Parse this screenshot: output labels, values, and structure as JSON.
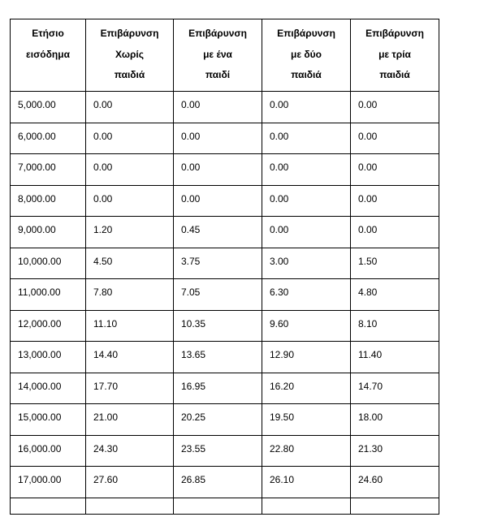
{
  "table": {
    "headers": [
      [
        "Ετήσιο",
        "εισόδημα"
      ],
      [
        "Επιβάρυνση",
        "Χωρίς",
        "παιδιά"
      ],
      [
        "Επιβάρυνση",
        "με ένα",
        "παιδί"
      ],
      [
        "Επιβάρυνση",
        "με δύο",
        "παιδιά"
      ],
      [
        "Επιβάρυνση",
        "με τρία",
        "παιδιά"
      ]
    ],
    "rows": [
      [
        "5,000.00",
        "0.00",
        "0.00",
        "0.00",
        "0.00"
      ],
      [
        "6,000.00",
        "0.00",
        "0.00",
        "0.00",
        "0.00"
      ],
      [
        "7,000.00",
        "0.00",
        "0.00",
        "0.00",
        "0.00"
      ],
      [
        "8,000.00",
        "0.00",
        "0.00",
        "0.00",
        "0.00"
      ],
      [
        "9,000.00",
        "1.20",
        "0.45",
        "0.00",
        "0.00"
      ],
      [
        "10,000.00",
        "4.50",
        "3.75",
        "3.00",
        "1.50"
      ],
      [
        "11,000.00",
        "7.80",
        "7.05",
        "6.30",
        "4.80"
      ],
      [
        "12,000.00",
        "11.10",
        "10.35",
        "9.60",
        "8.10"
      ],
      [
        "13,000.00",
        "14.40",
        "13.65",
        "12.90",
        "11.40"
      ],
      [
        "14,000.00",
        "17.70",
        "16.95",
        "16.20",
        "14.70"
      ],
      [
        "15,000.00",
        "21.00",
        "20.25",
        "19.50",
        "18.00"
      ],
      [
        "16,000.00",
        "24.30",
        "23.55",
        "22.80",
        "21.30"
      ],
      [
        "17,000.00",
        "27.60",
        "26.85",
        "26.10",
        "24.60"
      ]
    ]
  }
}
